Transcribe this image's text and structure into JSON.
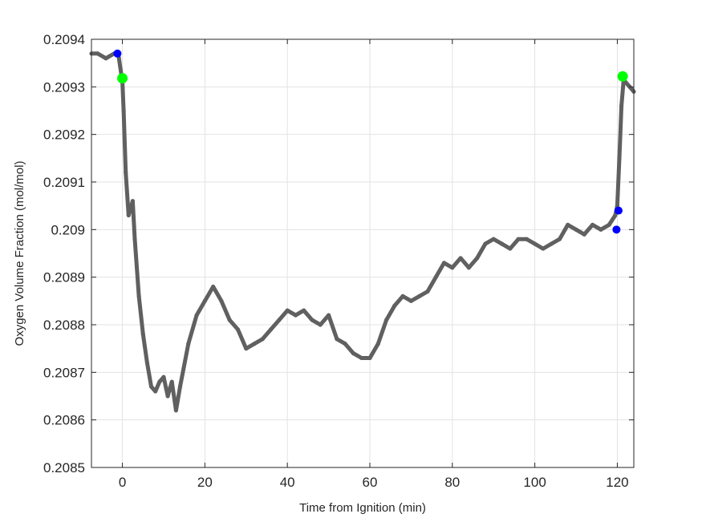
{
  "chart_data": {
    "type": "line",
    "xlabel": "Time from Ignition (min)",
    "ylabel": "Oxygen Volume Fraction (mol/mol)",
    "xlim": [
      -7.5,
      124
    ],
    "ylim": [
      0.2085,
      0.2094
    ],
    "x_ticks": [
      0,
      20,
      40,
      60,
      80,
      100,
      120
    ],
    "x_tick_labels": [
      "0",
      "20",
      "40",
      "60",
      "80",
      "100",
      "120"
    ],
    "y_ticks": [
      0.2085,
      0.2086,
      0.2087,
      0.2088,
      0.2089,
      0.209,
      0.2091,
      0.2092,
      0.2093,
      0.2094
    ],
    "y_tick_labels": [
      "0.2085",
      "0.2086",
      "0.2087",
      "0.2088",
      "0.2089",
      "0.209",
      "0.2091",
      "0.2092",
      "0.2093",
      "0.2094"
    ],
    "grid": true,
    "series": [
      {
        "color": "#606060",
        "x": [
          -7.5,
          -6,
          -4,
          -2,
          -1,
          0,
          0.3,
          0.8,
          1.5,
          2.5,
          3,
          4,
          5,
          6,
          7,
          8,
          9,
          10,
          11,
          12,
          13,
          14,
          16,
          18,
          20,
          22,
          24,
          26,
          28,
          30,
          32,
          34,
          36,
          38,
          40,
          42,
          44,
          46,
          48,
          50,
          52,
          54,
          56,
          58,
          60,
          62,
          64,
          66,
          68,
          70,
          72,
          74,
          76,
          78,
          80,
          82,
          84,
          86,
          88,
          90,
          92,
          94,
          96,
          98,
          100,
          102,
          104,
          106,
          108,
          110,
          112,
          114,
          116,
          118,
          119.5,
          120,
          120.5,
          121,
          121.5,
          122,
          123,
          124
        ],
        "y": [
          0.20937,
          0.20937,
          0.20936,
          0.20937,
          0.20937,
          0.20931,
          0.20925,
          0.20912,
          0.20903,
          0.20906,
          0.20898,
          0.20886,
          0.20878,
          0.20872,
          0.20867,
          0.20866,
          0.20868,
          0.20869,
          0.20865,
          0.20868,
          0.20862,
          0.20867,
          0.20876,
          0.20882,
          0.20885,
          0.20888,
          0.20885,
          0.20881,
          0.20879,
          0.20875,
          0.20876,
          0.20877,
          0.20879,
          0.20881,
          0.20883,
          0.20882,
          0.20883,
          0.20881,
          0.2088,
          0.20882,
          0.20877,
          0.20876,
          0.20874,
          0.20873,
          0.20873,
          0.20876,
          0.20881,
          0.20884,
          0.20886,
          0.20885,
          0.20886,
          0.20887,
          0.2089,
          0.20893,
          0.20892,
          0.20894,
          0.20892,
          0.20894,
          0.20897,
          0.20898,
          0.20897,
          0.20896,
          0.20898,
          0.20898,
          0.20897,
          0.20896,
          0.20897,
          0.20898,
          0.20901,
          0.209,
          0.20899,
          0.20901,
          0.209,
          0.20901,
          0.20903,
          0.20905,
          0.20915,
          0.20926,
          0.20931,
          0.20931,
          0.2093,
          0.20929
        ]
      }
    ],
    "markers": [
      {
        "color": "#0000ff",
        "points": [
          [
            -1.2,
            0.20937
          ],
          [
            119.8,
            0.209
          ],
          [
            120.3,
            0.20904
          ]
        ]
      },
      {
        "color": "#00ff00",
        "points": [
          [
            0,
            0.209318
          ],
          [
            121.3,
            0.209322
          ]
        ]
      }
    ]
  }
}
